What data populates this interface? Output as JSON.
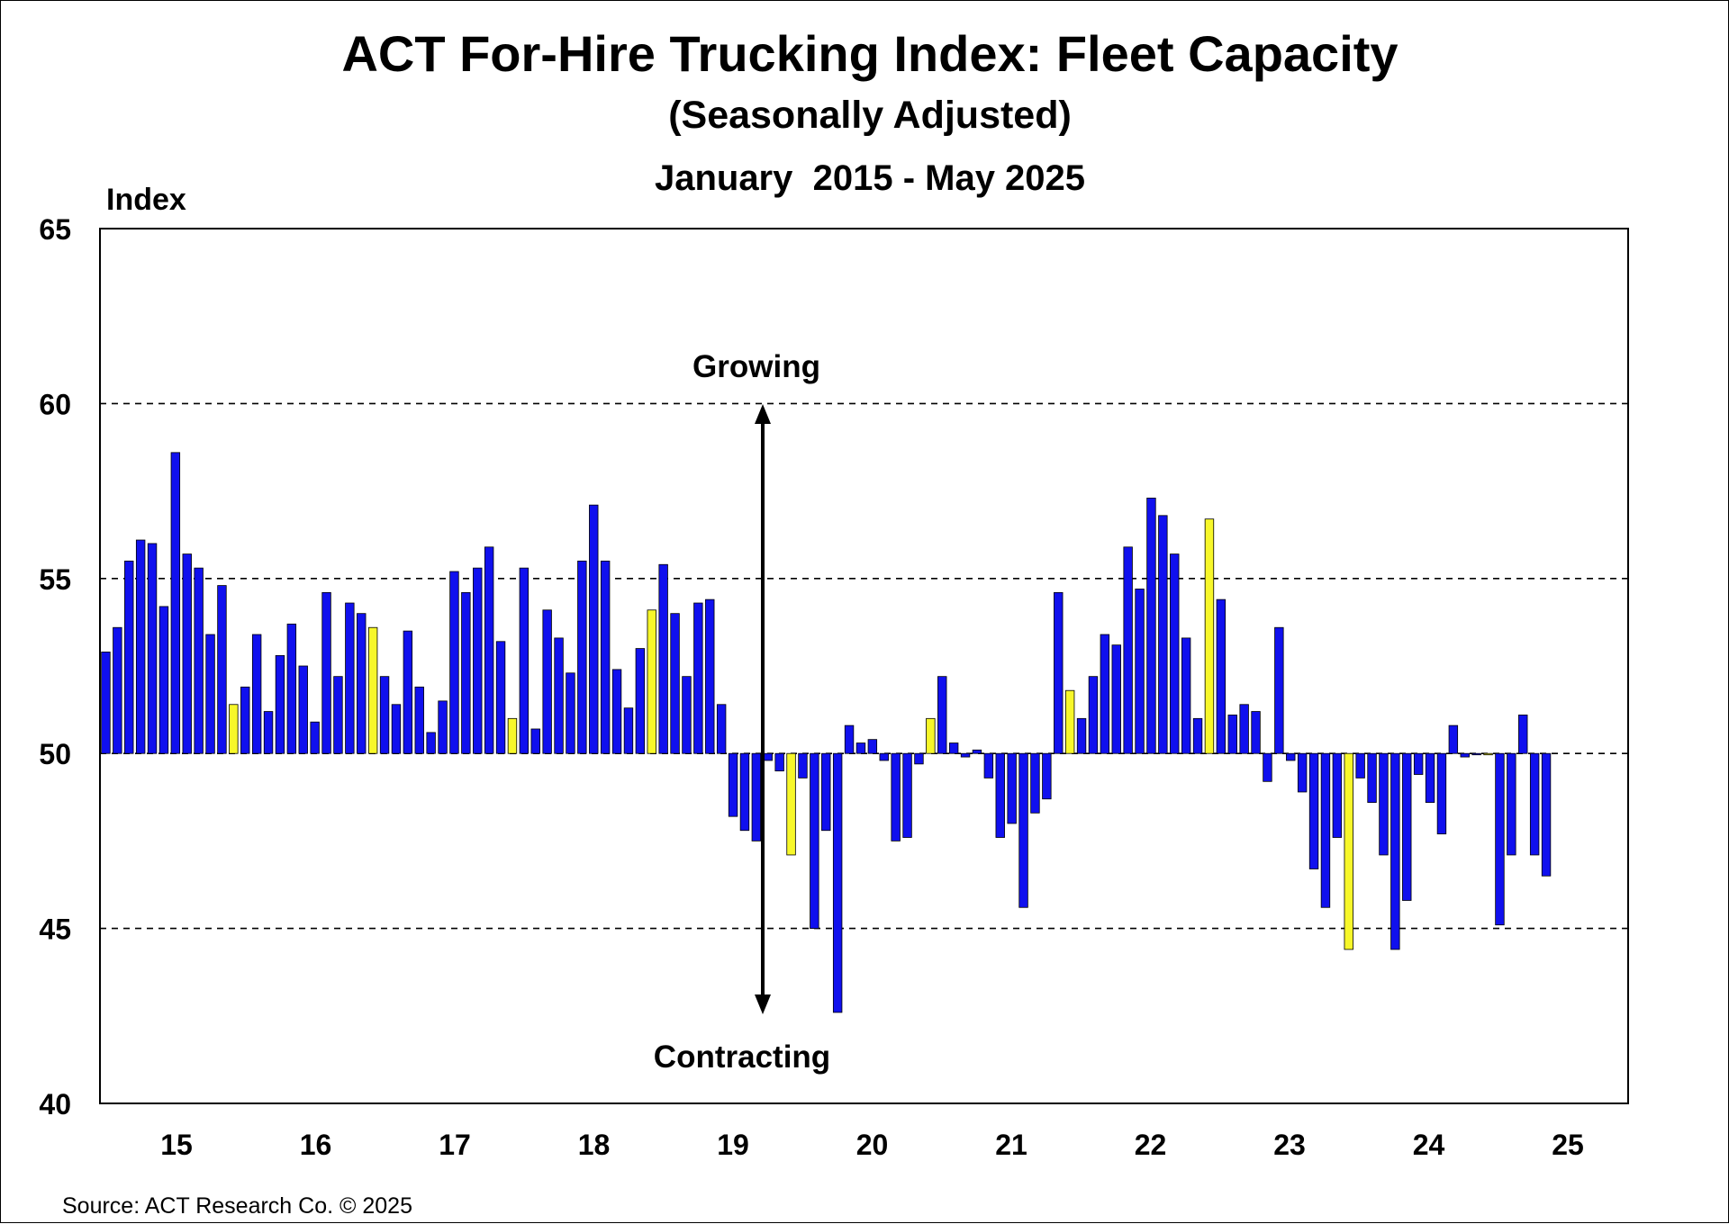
{
  "chart_data": {
    "type": "bar",
    "title": "ACT For-Hire Trucking Index: Fleet Capacity",
    "subtitle": "(Seasonally Adjusted)",
    "date_range": "January  2015 - May 2025",
    "ylabel": "Index",
    "ylim": [
      40,
      65
    ],
    "y_ticks": [
      "40",
      "45",
      "50",
      "55",
      "60",
      "65"
    ],
    "gridlines": [
      45,
      50,
      55,
      60
    ],
    "baseline": 50,
    "x_tick_labels": [
      "15",
      "16",
      "17",
      "18",
      "19",
      "20",
      "21",
      "22",
      "23",
      "24",
      "25"
    ],
    "grid": true,
    "legend": "none",
    "colors": {
      "bar": "#1010ee",
      "highlight": "#f7f72a",
      "bar_edge": "#000000"
    },
    "annotations": {
      "top": "Growing",
      "bottom": "Contracting"
    },
    "highlight_rule": "December values shown in yellow",
    "start": "2015-01",
    "months": [
      "2015-01",
      "2015-02",
      "2015-03",
      "2015-04",
      "2015-05",
      "2015-06",
      "2015-07",
      "2015-08",
      "2015-09",
      "2015-10",
      "2015-11",
      "2015-12",
      "2016-01",
      "2016-02",
      "2016-03",
      "2016-04",
      "2016-05",
      "2016-06",
      "2016-07",
      "2016-08",
      "2016-09",
      "2016-10",
      "2016-11",
      "2016-12",
      "2017-01",
      "2017-02",
      "2017-03",
      "2017-04",
      "2017-05",
      "2017-06",
      "2017-07",
      "2017-08",
      "2017-09",
      "2017-10",
      "2017-11",
      "2017-12",
      "2018-01",
      "2018-02",
      "2018-03",
      "2018-04",
      "2018-05",
      "2018-06",
      "2018-07",
      "2018-08",
      "2018-09",
      "2018-10",
      "2018-11",
      "2018-12",
      "2019-01",
      "2019-02",
      "2019-03",
      "2019-04",
      "2019-05",
      "2019-06",
      "2019-07",
      "2019-08",
      "2019-09",
      "2019-10",
      "2019-11",
      "2019-12",
      "2020-01",
      "2020-02",
      "2020-03",
      "2020-04",
      "2020-05",
      "2020-06",
      "2020-07",
      "2020-08",
      "2020-09",
      "2020-10",
      "2020-11",
      "2020-12",
      "2021-01",
      "2021-02",
      "2021-03",
      "2021-04",
      "2021-05",
      "2021-06",
      "2021-07",
      "2021-08",
      "2021-09",
      "2021-10",
      "2021-11",
      "2021-12",
      "2022-01",
      "2022-02",
      "2022-03",
      "2022-04",
      "2022-05",
      "2022-06",
      "2022-07",
      "2022-08",
      "2022-09",
      "2022-10",
      "2022-11",
      "2022-12",
      "2023-01",
      "2023-02",
      "2023-03",
      "2023-04",
      "2023-05",
      "2023-06",
      "2023-07",
      "2023-08",
      "2023-09",
      "2023-10",
      "2023-11",
      "2023-12",
      "2024-01",
      "2024-02",
      "2024-03",
      "2024-04",
      "2024-05",
      "2024-06",
      "2024-07",
      "2024-08",
      "2024-09",
      "2024-10",
      "2024-11",
      "2024-12",
      "2025-01",
      "2025-02",
      "2025-03",
      "2025-04",
      "2025-05"
    ],
    "values": [
      52.9,
      53.6,
      55.5,
      56.1,
      56.0,
      54.2,
      58.6,
      55.7,
      55.3,
      53.4,
      54.8,
      51.4,
      51.9,
      53.4,
      51.2,
      52.8,
      53.7,
      52.5,
      50.9,
      54.6,
      52.2,
      54.3,
      54.0,
      53.6,
      52.2,
      51.4,
      53.5,
      51.9,
      50.6,
      51.5,
      55.2,
      54.6,
      55.3,
      55.9,
      53.2,
      51.0,
      55.3,
      50.7,
      54.1,
      53.3,
      52.3,
      55.5,
      57.1,
      55.5,
      52.4,
      51.3,
      53.0,
      54.1,
      55.4,
      54.0,
      52.2,
      54.3,
      54.4,
      51.4,
      48.2,
      47.8,
      47.5,
      49.8,
      49.5,
      47.1,
      49.3,
      45.0,
      47.8,
      42.6,
      50.8,
      50.3,
      50.4,
      49.8,
      47.5,
      47.6,
      49.7,
      51.0,
      52.2,
      50.3,
      49.9,
      50.1,
      49.3,
      47.6,
      48.0,
      45.6,
      48.3,
      48.7,
      54.6,
      51.8,
      51.0,
      52.2,
      53.4,
      53.1,
      55.9,
      54.7,
      57.3,
      56.8,
      55.7,
      53.3,
      51.0,
      56.7,
      54.4,
      51.1,
      51.4,
      51.2,
      49.2,
      53.6,
      49.8,
      48.9,
      46.7,
      45.6,
      47.6,
      44.4,
      49.3,
      48.6,
      47.1,
      44.4,
      45.8,
      49.4,
      48.6,
      47.7,
      50.8,
      49.9,
      50.0,
      50.0,
      45.1,
      47.1,
      51.1,
      47.1,
      46.5
    ]
  },
  "footer": {
    "source": "Source: ACT Research Co. © 2025"
  }
}
